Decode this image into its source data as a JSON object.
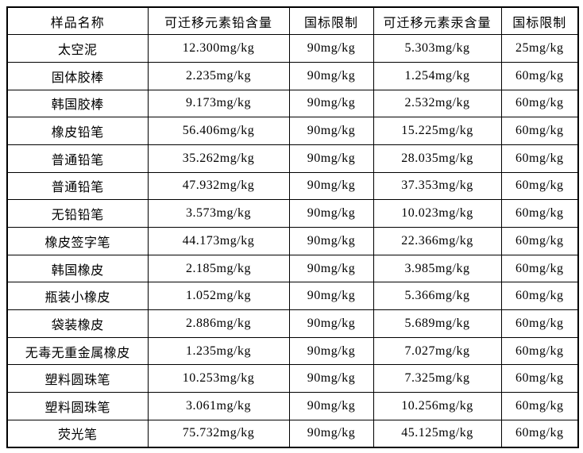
{
  "colors": {
    "border": "#000000",
    "text": "#000000",
    "background": "#ffffff"
  },
  "table": {
    "headers": [
      "样品名称",
      "可迁移元素铅含量",
      "国标限制",
      "可迁移元素汞含量",
      "国标限制"
    ],
    "rows": [
      [
        "太空泥",
        "12.300mg/kg",
        "90mg/kg",
        "5.303mg/kg",
        "25mg/kg"
      ],
      [
        "固体胶棒",
        "2.235mg/kg",
        "90mg/kg",
        "1.254mg/kg",
        "60mg/kg"
      ],
      [
        "韩国胶棒",
        "9.173mg/kg",
        "90mg/kg",
        "2.532mg/kg",
        "60mg/kg"
      ],
      [
        "橡皮铅笔",
        "56.406mg/kg",
        "90mg/kg",
        "15.225mg/kg",
        "60mg/kg"
      ],
      [
        "普通铅笔",
        "35.262mg/kg",
        "90mg/kg",
        "28.035mg/kg",
        "60mg/kg"
      ],
      [
        "普通铅笔",
        "47.932mg/kg",
        "90mg/kg",
        "37.353mg/kg",
        "60mg/kg"
      ],
      [
        "无铅铅笔",
        "3.573mg/kg",
        "90mg/kg",
        "10.023mg/kg",
        "60mg/kg"
      ],
      [
        "橡皮签字笔",
        "44.173mg/kg",
        "90mg/kg",
        "22.366mg/kg",
        "60mg/kg"
      ],
      [
        "韩国橡皮",
        "2.185mg/kg",
        "90mg/kg",
        "3.985mg/kg",
        "60mg/kg"
      ],
      [
        "瓶装小橡皮",
        "1.052mg/kg",
        "90mg/kg",
        "5.366mg/kg",
        "60mg/kg"
      ],
      [
        "袋装橡皮",
        "2.886mg/kg",
        "90mg/kg",
        "5.689mg/kg",
        "60mg/kg"
      ],
      [
        "无毒无重金属橡皮",
        "1.235mg/kg",
        "90mg/kg",
        "7.027mg/kg",
        "60mg/kg"
      ],
      [
        "塑料圆珠笔",
        "10.253mg/kg",
        "90mg/kg",
        "7.325mg/kg",
        "60mg/kg"
      ],
      [
        "塑料圆珠笔",
        "3.061mg/kg",
        "90mg/kg",
        "10.256mg/kg",
        "60mg/kg"
      ],
      [
        "荧光笔",
        "75.732mg/kg",
        "90mg/kg",
        "45.125mg/kg",
        "60mg/kg"
      ]
    ]
  }
}
